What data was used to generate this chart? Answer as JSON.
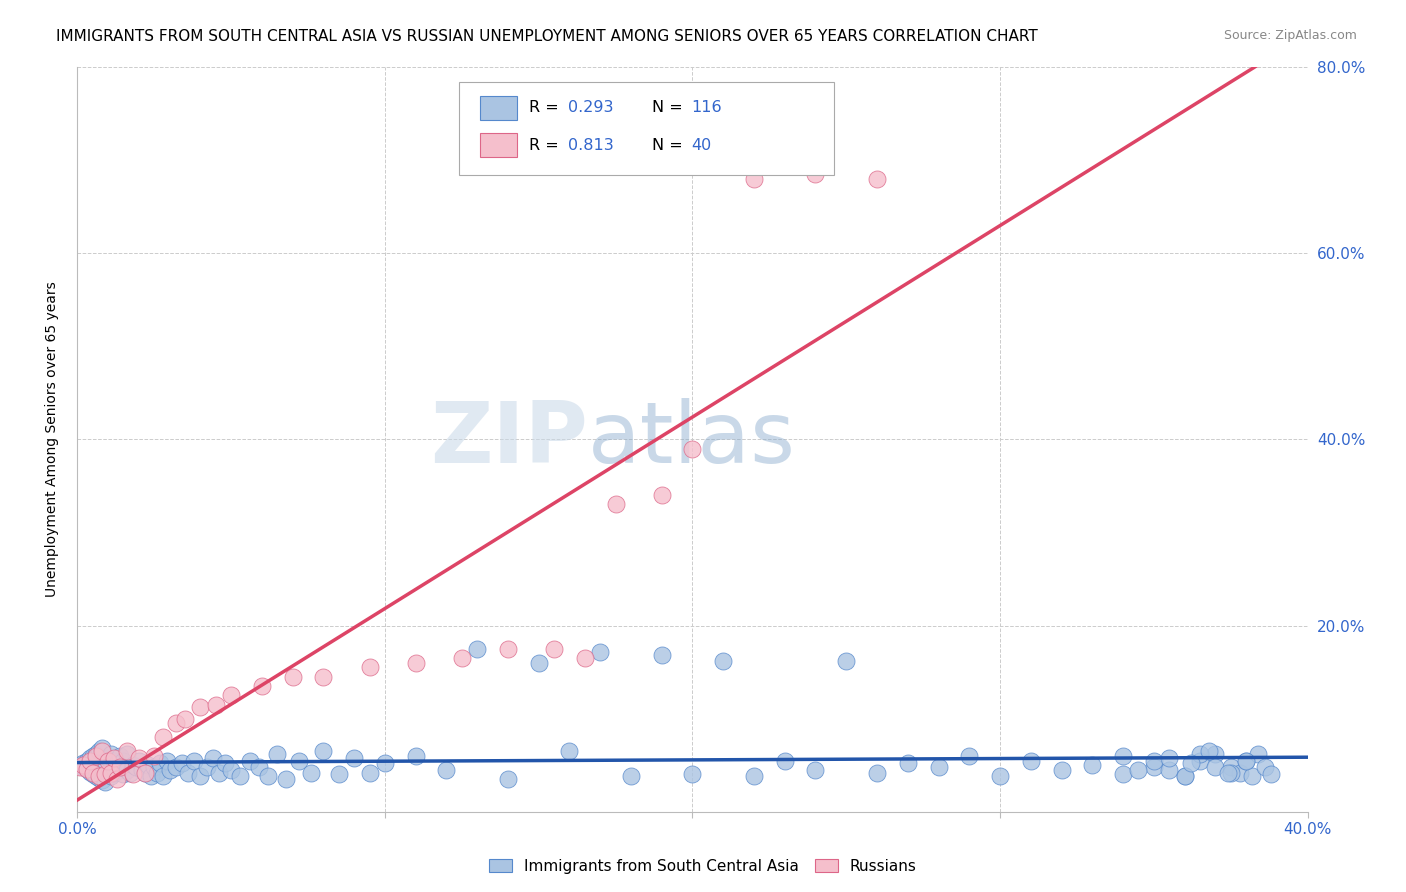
{
  "title": "IMMIGRANTS FROM SOUTH CENTRAL ASIA VS RUSSIAN UNEMPLOYMENT AMONG SENIORS OVER 65 YEARS CORRELATION CHART",
  "source": "Source: ZipAtlas.com",
  "ylabel": "Unemployment Among Seniors over 65 years",
  "blue_series": {
    "name": "Immigrants from South Central Asia",
    "R": 0.293,
    "N": 116,
    "color": "#aac4e2",
    "edge_color": "#5588cc",
    "line_color": "#2255aa",
    "x": [
      0.001,
      0.002,
      0.002,
      0.003,
      0.003,
      0.004,
      0.004,
      0.005,
      0.005,
      0.006,
      0.006,
      0.007,
      0.007,
      0.008,
      0.008,
      0.009,
      0.009,
      0.01,
      0.01,
      0.011,
      0.011,
      0.012,
      0.012,
      0.013,
      0.013,
      0.014,
      0.014,
      0.015,
      0.015,
      0.016,
      0.016,
      0.017,
      0.018,
      0.019,
      0.02,
      0.021,
      0.022,
      0.023,
      0.024,
      0.025,
      0.026,
      0.027,
      0.028,
      0.029,
      0.03,
      0.032,
      0.034,
      0.036,
      0.038,
      0.04,
      0.042,
      0.044,
      0.046,
      0.048,
      0.05,
      0.053,
      0.056,
      0.059,
      0.062,
      0.065,
      0.068,
      0.072,
      0.076,
      0.08,
      0.085,
      0.09,
      0.095,
      0.1,
      0.11,
      0.12,
      0.13,
      0.14,
      0.15,
      0.16,
      0.17,
      0.18,
      0.19,
      0.2,
      0.21,
      0.22,
      0.23,
      0.24,
      0.25,
      0.26,
      0.27,
      0.28,
      0.29,
      0.3,
      0.31,
      0.32,
      0.33,
      0.34,
      0.35,
      0.36,
      0.365,
      0.37,
      0.375,
      0.378,
      0.38,
      0.382,
      0.384,
      0.386,
      0.388,
      0.35,
      0.355,
      0.36,
      0.365,
      0.37,
      0.375,
      0.38,
      0.34,
      0.345,
      0.355,
      0.362,
      0.368,
      0.374
    ],
    "y": [
      0.05,
      0.048,
      0.052,
      0.046,
      0.055,
      0.043,
      0.058,
      0.041,
      0.06,
      0.038,
      0.062,
      0.036,
      0.065,
      0.034,
      0.068,
      0.032,
      0.055,
      0.04,
      0.058,
      0.038,
      0.062,
      0.042,
      0.055,
      0.048,
      0.052,
      0.045,
      0.06,
      0.04,
      0.055,
      0.045,
      0.062,
      0.042,
      0.05,
      0.048,
      0.055,
      0.045,
      0.042,
      0.05,
      0.038,
      0.048,
      0.042,
      0.052,
      0.038,
      0.055,
      0.045,
      0.048,
      0.052,
      0.042,
      0.055,
      0.038,
      0.048,
      0.058,
      0.042,
      0.052,
      0.045,
      0.038,
      0.055,
      0.048,
      0.038,
      0.062,
      0.035,
      0.055,
      0.042,
      0.065,
      0.04,
      0.058,
      0.042,
      0.052,
      0.06,
      0.045,
      0.175,
      0.035,
      0.16,
      0.065,
      0.172,
      0.038,
      0.168,
      0.04,
      0.162,
      0.038,
      0.055,
      0.045,
      0.162,
      0.042,
      0.052,
      0.048,
      0.06,
      0.038,
      0.055,
      0.045,
      0.05,
      0.06,
      0.048,
      0.038,
      0.055,
      0.062,
      0.048,
      0.042,
      0.055,
      0.038,
      0.062,
      0.048,
      0.04,
      0.055,
      0.045,
      0.038,
      0.062,
      0.048,
      0.042,
      0.055,
      0.04,
      0.045,
      0.058,
      0.052,
      0.065,
      0.042
    ]
  },
  "pink_series": {
    "name": "Russians",
    "R": 0.813,
    "N": 40,
    "color": "#f5bfcc",
    "edge_color": "#dd6688",
    "line_color": "#dd4466",
    "x": [
      0.001,
      0.002,
      0.003,
      0.004,
      0.005,
      0.006,
      0.007,
      0.008,
      0.009,
      0.01,
      0.011,
      0.012,
      0.013,
      0.014,
      0.016,
      0.018,
      0.02,
      0.022,
      0.025,
      0.028,
      0.032,
      0.035,
      0.04,
      0.045,
      0.05,
      0.06,
      0.07,
      0.08,
      0.095,
      0.11,
      0.125,
      0.14,
      0.155,
      0.165,
      0.175,
      0.19,
      0.2,
      0.22,
      0.24,
      0.26
    ],
    "y": [
      0.048,
      0.05,
      0.046,
      0.055,
      0.042,
      0.06,
      0.038,
      0.065,
      0.04,
      0.055,
      0.042,
      0.058,
      0.035,
      0.048,
      0.065,
      0.04,
      0.058,
      0.042,
      0.06,
      0.08,
      0.095,
      0.1,
      0.112,
      0.115,
      0.125,
      0.135,
      0.145,
      0.145,
      0.155,
      0.16,
      0.165,
      0.175,
      0.175,
      0.165,
      0.33,
      0.34,
      0.39,
      0.68,
      0.685,
      0.68
    ]
  },
  "xlim": [
    0.0,
    0.4
  ],
  "ylim": [
    0.0,
    0.8
  ],
  "xticks": [
    0.0,
    0.1,
    0.2,
    0.3,
    0.4
  ],
  "yticks": [
    0.0,
    0.2,
    0.4,
    0.6,
    0.8
  ],
  "xticklabels_show": [
    "0.0%",
    "",
    "",
    "",
    "40.0%"
  ],
  "yticklabels_right": [
    "",
    "20.0%",
    "40.0%",
    "60.0%",
    "80.0%"
  ],
  "watermark_zip": "ZIP",
  "watermark_atlas": "atlas",
  "background_color": "#ffffff",
  "grid_color": "#cccccc",
  "title_fontsize": 11,
  "axis_label_fontsize": 10,
  "tick_fontsize": 11,
  "legend_R_color": "#3366cc",
  "legend_N_color": "#3366cc"
}
